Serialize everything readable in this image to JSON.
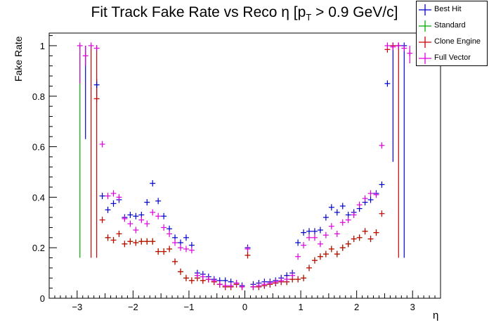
{
  "chart_data": {
    "type": "scatter",
    "title_prefix": "Fit Track Fake Rate vs Reco η [p",
    "title_sub": "T",
    "title_suffix": " > 0.9 GeV/c]",
    "xlabel": "η",
    "ylabel": "Fake Rate",
    "xlim": [
      -3.5,
      3.5
    ],
    "ylim": [
      0,
      1.05
    ],
    "x_ticks": [
      -3,
      -2,
      -1,
      0,
      1,
      2,
      3
    ],
    "x_tick_labels": [
      "−3",
      "−2",
      "−1",
      "0",
      "1",
      "2",
      "3"
    ],
    "y_ticks": [
      0,
      0.2,
      0.4,
      0.6,
      0.8,
      1
    ],
    "y_tick_labels": [
      "0",
      "0.2",
      "0.4",
      "0.6",
      "0.8",
      "1"
    ],
    "grid": false,
    "legend_position": "top-right",
    "series": [
      {
        "name": "Best Hit",
        "color": "#0000cc",
        "points": [
          [
            -2.65,
            0.845
          ],
          [
            -2.55,
            0.405
          ],
          [
            -2.45,
            0.35
          ],
          [
            -2.35,
            0.375
          ],
          [
            -2.25,
            0.39
          ],
          [
            -2.15,
            0.32
          ],
          [
            -2.05,
            0.33
          ],
          [
            -1.95,
            0.325
          ],
          [
            -1.85,
            0.33
          ],
          [
            -1.75,
            0.38
          ],
          [
            -1.65,
            0.455
          ],
          [
            -1.55,
            0.385
          ],
          [
            -1.45,
            0.325
          ],
          [
            -1.35,
            0.275
          ],
          [
            -1.25,
            0.24
          ],
          [
            -1.15,
            0.22
          ],
          [
            -1.05,
            0.24
          ],
          [
            -0.95,
            0.21
          ],
          [
            -0.85,
            0.1
          ],
          [
            -0.75,
            0.095
          ],
          [
            -0.65,
            0.085
          ],
          [
            -0.55,
            0.075
          ],
          [
            -0.45,
            0.07
          ],
          [
            -0.35,
            0.07
          ],
          [
            -0.25,
            0.065
          ],
          [
            -0.15,
            0.06
          ],
          [
            -0.05,
            0.05
          ],
          [
            0.05,
            0.2
          ],
          [
            0.15,
            0.055
          ],
          [
            0.25,
            0.06
          ],
          [
            0.35,
            0.065
          ],
          [
            0.45,
            0.065
          ],
          [
            0.55,
            0.07
          ],
          [
            0.65,
            0.08
          ],
          [
            0.75,
            0.09
          ],
          [
            0.85,
            0.1
          ],
          [
            0.95,
            0.22
          ],
          [
            1.05,
            0.26
          ],
          [
            1.15,
            0.265
          ],
          [
            1.25,
            0.265
          ],
          [
            1.35,
            0.27
          ],
          [
            1.45,
            0.32
          ],
          [
            1.55,
            0.36
          ],
          [
            1.65,
            0.34
          ],
          [
            1.75,
            0.365
          ],
          [
            1.85,
            0.33
          ],
          [
            1.95,
            0.34
          ],
          [
            2.05,
            0.355
          ],
          [
            2.15,
            0.38
          ],
          [
            2.25,
            0.39
          ],
          [
            2.35,
            0.415
          ],
          [
            2.45,
            0.45
          ],
          [
            2.55,
            0.85
          ],
          [
            2.65,
            1.0
          ],
          [
            2.75,
            1.0
          ],
          [
            2.85,
            1.0
          ]
        ]
      },
      {
        "name": "Standard",
        "color": "#00aa00",
        "points": [
          [
            -2.45,
            0.24
          ],
          [
            -2.35,
            0.23
          ],
          [
            -2.25,
            0.255
          ],
          [
            -2.15,
            0.215
          ],
          [
            -2.05,
            0.225
          ],
          [
            -1.95,
            0.22
          ],
          [
            -1.85,
            0.225
          ],
          [
            -1.75,
            0.225
          ],
          [
            -1.65,
            0.225
          ],
          [
            -1.55,
            0.185
          ],
          [
            -1.45,
            0.185
          ],
          [
            -1.35,
            0.195
          ],
          [
            -1.25,
            0.145
          ],
          [
            -1.15,
            0.105
          ],
          [
            -1.05,
            0.08
          ],
          [
            -0.95,
            0.07
          ],
          [
            -0.85,
            0.08
          ],
          [
            -0.75,
            0.07
          ],
          [
            -0.65,
            0.075
          ],
          [
            -0.55,
            0.065
          ],
          [
            -0.45,
            0.055
          ],
          [
            -0.35,
            0.045
          ],
          [
            -0.25,
            0.045
          ],
          [
            -0.15,
            0.055
          ],
          [
            -0.05,
            0.045
          ],
          [
            0.05,
            0.17
          ],
          [
            0.15,
            0.045
          ],
          [
            0.25,
            0.045
          ],
          [
            0.35,
            0.05
          ],
          [
            0.45,
            0.055
          ],
          [
            0.55,
            0.06
          ],
          [
            0.65,
            0.065
          ],
          [
            0.75,
            0.065
          ],
          [
            0.85,
            0.075
          ],
          [
            0.95,
            0.075
          ],
          [
            1.05,
            0.08
          ],
          [
            1.15,
            0.12
          ],
          [
            1.25,
            0.15
          ],
          [
            1.35,
            0.165
          ],
          [
            1.45,
            0.175
          ],
          [
            1.55,
            0.195
          ],
          [
            1.65,
            0.175
          ],
          [
            1.75,
            0.2
          ],
          [
            1.85,
            0.215
          ],
          [
            1.95,
            0.235
          ],
          [
            2.05,
            0.24
          ],
          [
            2.15,
            0.265
          ],
          [
            2.25,
            0.235
          ],
          [
            2.35,
            0.26
          ]
        ]
      },
      {
        "name": "Clone Engine",
        "color": "#cc0000",
        "points": [
          [
            -2.65,
            0.79
          ],
          [
            -2.55,
            0.31
          ],
          [
            -2.45,
            0.24
          ],
          [
            -2.35,
            0.23
          ],
          [
            -2.25,
            0.255
          ],
          [
            -2.15,
            0.215
          ],
          [
            -2.05,
            0.225
          ],
          [
            -1.95,
            0.22
          ],
          [
            -1.85,
            0.225
          ],
          [
            -1.75,
            0.225
          ],
          [
            -1.65,
            0.225
          ],
          [
            -1.55,
            0.185
          ],
          [
            -1.45,
            0.185
          ],
          [
            -1.35,
            0.195
          ],
          [
            -1.25,
            0.145
          ],
          [
            -1.15,
            0.105
          ],
          [
            -1.05,
            0.08
          ],
          [
            -0.95,
            0.07
          ],
          [
            -0.85,
            0.08
          ],
          [
            -0.75,
            0.07
          ],
          [
            -0.65,
            0.075
          ],
          [
            -0.55,
            0.065
          ],
          [
            -0.45,
            0.055
          ],
          [
            -0.35,
            0.045
          ],
          [
            -0.25,
            0.045
          ],
          [
            -0.15,
            0.055
          ],
          [
            -0.05,
            0.045
          ],
          [
            0.05,
            0.17
          ],
          [
            0.15,
            0.045
          ],
          [
            0.25,
            0.045
          ],
          [
            0.35,
            0.05
          ],
          [
            0.45,
            0.055
          ],
          [
            0.55,
            0.06
          ],
          [
            0.65,
            0.065
          ],
          [
            0.75,
            0.065
          ],
          [
            0.85,
            0.075
          ],
          [
            0.95,
            0.075
          ],
          [
            1.05,
            0.08
          ],
          [
            1.15,
            0.12
          ],
          [
            1.25,
            0.15
          ],
          [
            1.35,
            0.165
          ],
          [
            1.45,
            0.175
          ],
          [
            1.55,
            0.195
          ],
          [
            1.65,
            0.175
          ],
          [
            1.75,
            0.2
          ],
          [
            1.85,
            0.215
          ],
          [
            1.95,
            0.235
          ],
          [
            2.05,
            0.24
          ],
          [
            2.15,
            0.265
          ],
          [
            2.25,
            0.235
          ],
          [
            2.35,
            0.26
          ],
          [
            2.45,
            0.335
          ],
          [
            2.55,
            0.985
          ],
          [
            2.65,
            1.0
          ],
          [
            2.75,
            1.0
          ]
        ]
      },
      {
        "name": "Full Vector",
        "color": "#dd00dd",
        "points": [
          [
            -2.95,
            1.0
          ],
          [
            -2.85,
            0.96
          ],
          [
            -2.75,
            1.0
          ],
          [
            -2.65,
            0.99
          ],
          [
            -2.55,
            0.61
          ],
          [
            -2.45,
            0.405
          ],
          [
            -2.35,
            0.415
          ],
          [
            -2.25,
            0.4
          ],
          [
            -2.15,
            0.315
          ],
          [
            -2.05,
            0.295
          ],
          [
            -1.95,
            0.27
          ],
          [
            -1.85,
            0.31
          ],
          [
            -1.75,
            0.295
          ],
          [
            -1.65,
            0.34
          ],
          [
            -1.55,
            0.325
          ],
          [
            -1.45,
            0.28
          ],
          [
            -1.35,
            0.255
          ],
          [
            -1.25,
            0.22
          ],
          [
            -1.15,
            0.2
          ],
          [
            -1.05,
            0.195
          ],
          [
            -0.95,
            0.19
          ],
          [
            -0.85,
            0.09
          ],
          [
            -0.75,
            0.085
          ],
          [
            -0.65,
            0.075
          ],
          [
            -0.55,
            0.07
          ],
          [
            -0.45,
            0.055
          ],
          [
            -0.35,
            0.05
          ],
          [
            -0.25,
            0.05
          ],
          [
            -0.15,
            0.06
          ],
          [
            -0.05,
            0.045
          ],
          [
            0.05,
            0.195
          ],
          [
            0.15,
            0.045
          ],
          [
            0.25,
            0.05
          ],
          [
            0.35,
            0.055
          ],
          [
            0.45,
            0.06
          ],
          [
            0.55,
            0.065
          ],
          [
            0.65,
            0.07
          ],
          [
            0.75,
            0.075
          ],
          [
            0.85,
            0.09
          ],
          [
            0.95,
            0.165
          ],
          [
            1.05,
            0.21
          ],
          [
            1.15,
            0.24
          ],
          [
            1.25,
            0.24
          ],
          [
            1.35,
            0.215
          ],
          [
            1.45,
            0.25
          ],
          [
            1.55,
            0.285
          ],
          [
            1.65,
            0.255
          ],
          [
            1.75,
            0.3
          ],
          [
            1.85,
            0.31
          ],
          [
            1.95,
            0.33
          ],
          [
            2.05,
            0.37
          ],
          [
            2.15,
            0.395
          ],
          [
            2.25,
            0.415
          ],
          [
            2.35,
            0.41
          ],
          [
            2.45,
            0.605
          ],
          [
            2.55,
            1.0
          ],
          [
            2.65,
            0.995
          ],
          [
            2.75,
            1.0
          ],
          [
            2.85,
            0.99
          ],
          [
            2.95,
            0.97
          ]
        ]
      }
    ],
    "error_bars": [
      {
        "series": "Best Hit",
        "x": -2.85,
        "low": 0.63,
        "high": 1.0
      },
      {
        "series": "Best Hit",
        "x": -2.65,
        "low": 0.8,
        "high": 0.87
      },
      {
        "series": "Best Hit",
        "x": 2.65,
        "low": 0.54,
        "high": 1.0
      },
      {
        "series": "Best Hit",
        "x": 2.85,
        "low": 0.16,
        "high": 1.0
      },
      {
        "series": "Standard",
        "x": -2.95,
        "low": 0.16,
        "high": 1.0
      },
      {
        "series": "Clone Engine",
        "x": -2.75,
        "low": 0.16,
        "high": 1.0
      },
      {
        "series": "Clone Engine",
        "x": -2.65,
        "low": 0.16,
        "high": 1.0
      },
      {
        "series": "Clone Engine",
        "x": 2.75,
        "low": 0.16,
        "high": 1.0
      },
      {
        "series": "Full Vector",
        "x": -2.95,
        "low": 0.85,
        "high": 1.0
      },
      {
        "series": "Full Vector",
        "x": -2.85,
        "low": 0.92,
        "high": 1.0
      },
      {
        "series": "Full Vector",
        "x": 2.95,
        "low": 0.93,
        "high": 1.0
      }
    ]
  }
}
